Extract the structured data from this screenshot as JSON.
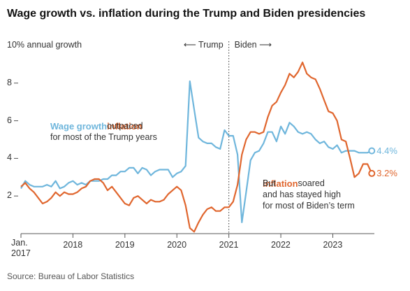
{
  "chart_data": {
    "type": "line",
    "title": "Wage growth vs. inflation during the Trump and Biden presidencies",
    "source": "Source: Bureau of Labor Statistics",
    "x": [
      2017.0,
      2017.083,
      2017.167,
      2017.25,
      2017.333,
      2017.417,
      2017.5,
      2017.583,
      2017.667,
      2017.75,
      2017.833,
      2017.917,
      2018.0,
      2018.083,
      2018.167,
      2018.25,
      2018.333,
      2018.417,
      2018.5,
      2018.583,
      2018.667,
      2018.75,
      2018.833,
      2018.917,
      2019.0,
      2019.083,
      2019.167,
      2019.25,
      2019.333,
      2019.417,
      2019.5,
      2019.583,
      2019.667,
      2019.75,
      2019.833,
      2019.917,
      2020.0,
      2020.083,
      2020.167,
      2020.25,
      2020.333,
      2020.417,
      2020.5,
      2020.583,
      2020.667,
      2020.75,
      2020.833,
      2020.917,
      2021.0,
      2021.083,
      2021.167,
      2021.25,
      2021.333,
      2021.417,
      2021.5,
      2021.583,
      2021.667,
      2021.75,
      2021.833,
      2021.917,
      2022.0,
      2022.083,
      2022.167,
      2022.25,
      2022.333,
      2022.417,
      2022.5,
      2022.583,
      2022.667,
      2022.75,
      2022.833,
      2022.917,
      2023.0,
      2023.083,
      2023.167,
      2023.25,
      2023.333,
      2023.417,
      2023.5,
      2023.583,
      2023.667,
      2023.75
    ],
    "series": [
      {
        "name": "Wage growth",
        "color": "#6fb6dc",
        "values": [
          2.4,
          2.8,
          2.6,
          2.5,
          2.5,
          2.5,
          2.6,
          2.5,
          2.8,
          2.4,
          2.5,
          2.7,
          2.8,
          2.6,
          2.7,
          2.6,
          2.8,
          2.8,
          2.8,
          2.9,
          2.9,
          3.1,
          3.1,
          3.3,
          3.3,
          3.5,
          3.5,
          3.2,
          3.5,
          3.4,
          3.1,
          3.3,
          3.4,
          3.4,
          3.4,
          3.0,
          3.2,
          3.3,
          3.6,
          8.1,
          6.6,
          5.1,
          4.9,
          4.8,
          4.8,
          4.6,
          4.5,
          5.5,
          5.2,
          5.2,
          4.2,
          0.6,
          2.2,
          3.9,
          4.3,
          4.4,
          4.8,
          5.4,
          5.4,
          4.9,
          5.7,
          5.3,
          5.9,
          5.7,
          5.4,
          5.3,
          5.4,
          5.3,
          5.0,
          4.8,
          4.9,
          4.6,
          4.5,
          4.7,
          4.3,
          4.4,
          4.4,
          4.4,
          4.3,
          4.3,
          4.3,
          4.4
        ],
        "value_labels": [
          null,
          null,
          null,
          null,
          null,
          null,
          null,
          null,
          null,
          null,
          null,
          null,
          null,
          null,
          null,
          null,
          null,
          null,
          null,
          null,
          null,
          null,
          null,
          null,
          null,
          null,
          null,
          null,
          null,
          null,
          null,
          null,
          null,
          null,
          null,
          null,
          null,
          null,
          null,
          null,
          null,
          null,
          null,
          null,
          null,
          null,
          null,
          null,
          null,
          null,
          null,
          null,
          null,
          null,
          null,
          null,
          null,
          null,
          null,
          null,
          null,
          null,
          null,
          null,
          null,
          null,
          null,
          null,
          null,
          null,
          null,
          null,
          null,
          null,
          null,
          null,
          null,
          null,
          null,
          null,
          null,
          "4.4%"
        ]
      },
      {
        "name": "Inflation",
        "color": "#e0662e",
        "values": [
          2.5,
          2.7,
          2.4,
          2.2,
          1.9,
          1.6,
          1.7,
          1.9,
          2.2,
          2.0,
          2.2,
          2.1,
          2.1,
          2.2,
          2.4,
          2.5,
          2.8,
          2.9,
          2.9,
          2.7,
          2.3,
          2.5,
          2.2,
          1.9,
          1.6,
          1.5,
          1.9,
          2.0,
          1.8,
          1.6,
          1.8,
          1.7,
          1.7,
          1.8,
          2.1,
          2.3,
          2.5,
          2.3,
          1.5,
          0.3,
          0.1,
          0.6,
          1.0,
          1.3,
          1.4,
          1.2,
          1.2,
          1.4,
          1.4,
          1.7,
          2.6,
          4.2,
          5.0,
          5.4,
          5.4,
          5.3,
          5.4,
          6.2,
          6.8,
          7.0,
          7.5,
          7.9,
          8.5,
          8.3,
          8.6,
          9.1,
          8.5,
          8.3,
          8.2,
          7.7,
          7.1,
          6.5,
          6.4,
          6.0,
          5.0,
          4.9,
          4.0,
          3.0,
          3.2,
          3.7,
          3.7,
          3.2
        ],
        "value_labels": [
          null,
          null,
          null,
          null,
          null,
          null,
          null,
          null,
          null,
          null,
          null,
          null,
          null,
          null,
          null,
          null,
          null,
          null,
          null,
          null,
          null,
          null,
          null,
          null,
          null,
          null,
          null,
          null,
          null,
          null,
          null,
          null,
          null,
          null,
          null,
          null,
          null,
          null,
          null,
          null,
          null,
          null,
          null,
          null,
          null,
          null,
          null,
          null,
          null,
          null,
          null,
          null,
          null,
          null,
          null,
          null,
          null,
          null,
          null,
          null,
          null,
          null,
          null,
          null,
          null,
          null,
          null,
          null,
          null,
          null,
          null,
          null,
          null,
          null,
          null,
          null,
          null,
          null,
          null,
          null,
          null,
          "3.2%"
        ]
      }
    ],
    "xlim": [
      2017,
      2023.8
    ],
    "xticks": [
      {
        "value": 2017,
        "label": "Jan. 2017"
      },
      2018,
      2019,
      2020,
      2021,
      2022,
      2023
    ],
    "ylim": [
      0,
      10
    ],
    "yticks": [
      2,
      4,
      6,
      8,
      {
        "value": 10,
        "label": "10% annual growth"
      }
    ],
    "grid": false,
    "divider": {
      "x": 2021,
      "left_label": "⟵ Trump",
      "right_label": "Biden ⟶"
    },
    "annotations": [
      {
        "lines": [
          [
            {
              "text": "Wage growth",
              "series": 0
            },
            {
              "text": " outpaced "
            },
            {
              "text": "inflation",
              "series": 1
            }
          ],
          [
            {
              "text": "for most of the Trump years"
            }
          ]
        ]
      },
      {
        "lines": [
          [
            {
              "text": "But "
            },
            {
              "text": "inflation",
              "series": 1
            },
            {
              "text": " soared"
            }
          ],
          [
            {
              "text": "and has stayed high"
            }
          ],
          [
            {
              "text": "for most of Biden’s term"
            }
          ]
        ]
      }
    ]
  }
}
